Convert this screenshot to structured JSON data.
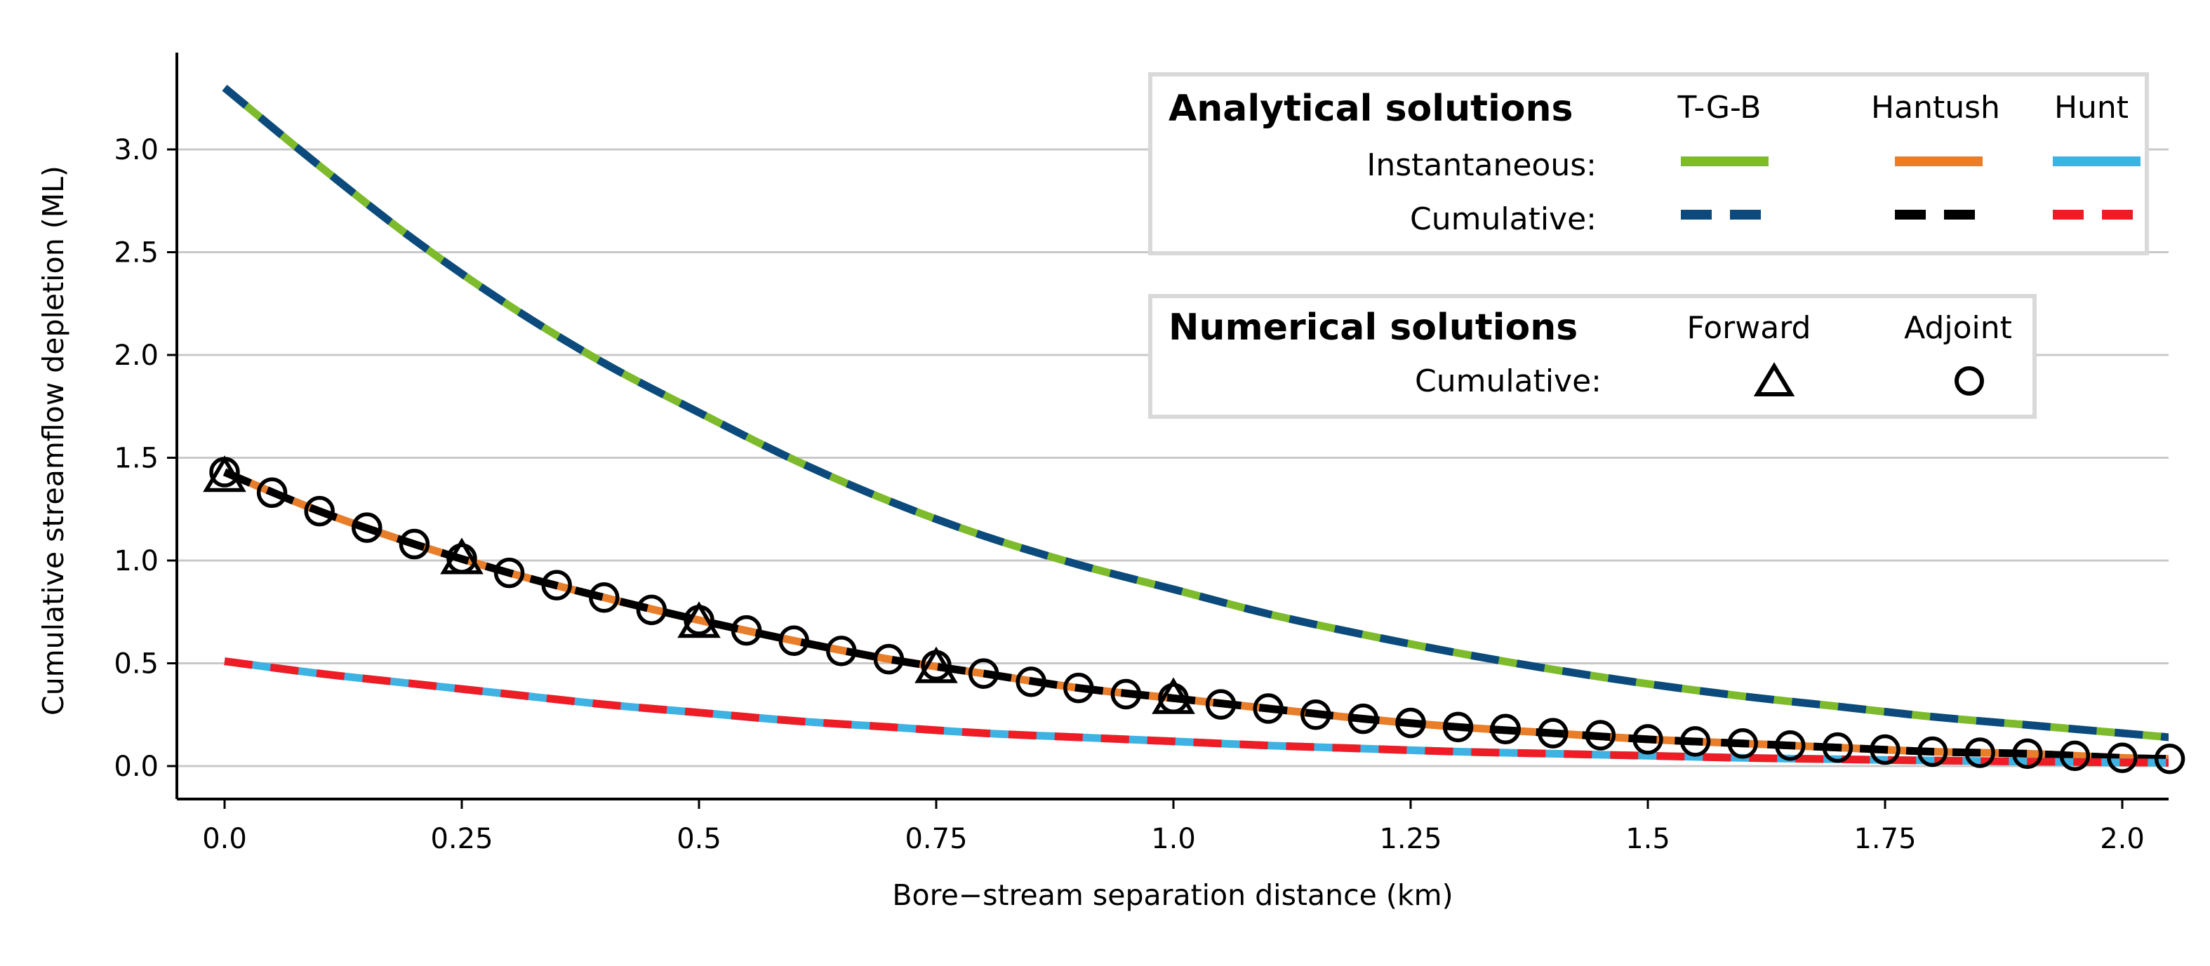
{
  "chart_data": {
    "type": "line",
    "xlabel": "Bore−stream separation distance (km)",
    "ylabel": "Cumulative streamflow depletion (ML)",
    "xlim": [
      -0.05,
      2.05
    ],
    "ylim": [
      -0.16,
      3.45
    ],
    "x_ticks": [
      0.0,
      0.25,
      0.5,
      0.75,
      1.0,
      1.25,
      1.5,
      1.75,
      2.0
    ],
    "x_tick_labels": [
      "0.0",
      "0.25",
      "0.5",
      "0.75",
      "1.0",
      "1.25",
      "1.5",
      "1.75",
      "2.0"
    ],
    "y_ticks": [
      0.0,
      0.5,
      1.0,
      1.5,
      2.0,
      2.5,
      3.0
    ],
    "y_tick_labels": [
      "0.0",
      "0.5",
      "1.0",
      "1.5",
      "2.0",
      "2.5",
      "3.0"
    ],
    "grid": "horizontal",
    "analytical_series": [
      {
        "name": "T-G-B",
        "kind": "Instantaneous",
        "color": "#7dbb2c",
        "style": "solid",
        "x": [
          0.0,
          0.1,
          0.2,
          0.3,
          0.4,
          0.5,
          0.6,
          0.7,
          0.8,
          0.9,
          1.0,
          1.1,
          1.2,
          1.3,
          1.4,
          1.5,
          1.6,
          1.7,
          1.8,
          1.9,
          2.0,
          2.05
        ],
        "y": [
          3.3,
          2.92,
          2.56,
          2.24,
          1.96,
          1.72,
          1.49,
          1.29,
          1.12,
          0.98,
          0.86,
          0.74,
          0.64,
          0.55,
          0.47,
          0.4,
          0.34,
          0.29,
          0.24,
          0.2,
          0.16,
          0.14
        ]
      },
      {
        "name": "T-G-B",
        "kind": "Cumulative",
        "color": "#0c4a7d",
        "style": "dashed",
        "x": [
          0.0,
          0.1,
          0.2,
          0.3,
          0.4,
          0.5,
          0.6,
          0.7,
          0.8,
          0.9,
          1.0,
          1.1,
          1.2,
          1.3,
          1.4,
          1.5,
          1.6,
          1.7,
          1.8,
          1.9,
          2.0,
          2.05
        ],
        "y": [
          3.3,
          2.92,
          2.56,
          2.24,
          1.96,
          1.72,
          1.49,
          1.29,
          1.12,
          0.98,
          0.86,
          0.74,
          0.64,
          0.55,
          0.47,
          0.4,
          0.34,
          0.29,
          0.24,
          0.2,
          0.16,
          0.14
        ]
      },
      {
        "name": "Hantush",
        "kind": "Instantaneous",
        "color": "#e87d2a",
        "style": "solid",
        "x": [
          0.0,
          0.1,
          0.2,
          0.3,
          0.4,
          0.5,
          0.6,
          0.7,
          0.8,
          0.9,
          1.0,
          1.1,
          1.2,
          1.3,
          1.4,
          1.5,
          1.6,
          1.7,
          1.8,
          1.9,
          2.0,
          2.05
        ],
        "y": [
          1.43,
          1.24,
          1.08,
          0.94,
          0.82,
          0.71,
          0.61,
          0.52,
          0.45,
          0.38,
          0.33,
          0.28,
          0.23,
          0.19,
          0.16,
          0.13,
          0.11,
          0.09,
          0.07,
          0.06,
          0.04,
          0.035
        ]
      },
      {
        "name": "Hantush",
        "kind": "Cumulative",
        "color": "#000000",
        "style": "dashed",
        "x": [
          0.0,
          0.1,
          0.2,
          0.3,
          0.4,
          0.5,
          0.6,
          0.7,
          0.8,
          0.9,
          1.0,
          1.1,
          1.2,
          1.3,
          1.4,
          1.5,
          1.6,
          1.7,
          1.8,
          1.9,
          2.0,
          2.05
        ],
        "y": [
          1.43,
          1.24,
          1.08,
          0.94,
          0.82,
          0.71,
          0.61,
          0.52,
          0.45,
          0.38,
          0.33,
          0.28,
          0.23,
          0.19,
          0.16,
          0.13,
          0.11,
          0.09,
          0.07,
          0.06,
          0.04,
          0.035
        ]
      },
      {
        "name": "Hunt",
        "kind": "Instantaneous",
        "color": "#3db2e3",
        "style": "solid",
        "x": [
          0.0,
          0.1,
          0.2,
          0.3,
          0.4,
          0.5,
          0.6,
          0.7,
          0.8,
          0.9,
          1.0,
          1.1,
          1.2,
          1.3,
          1.4,
          1.5,
          1.6,
          1.7,
          1.8,
          1.9,
          2.0,
          2.05
        ],
        "y": [
          0.51,
          0.45,
          0.4,
          0.35,
          0.3,
          0.26,
          0.22,
          0.19,
          0.16,
          0.14,
          0.12,
          0.1,
          0.085,
          0.07,
          0.06,
          0.05,
          0.04,
          0.033,
          0.027,
          0.022,
          0.018,
          0.016
        ]
      },
      {
        "name": "Hunt",
        "kind": "Cumulative",
        "color": "#ee1c24",
        "style": "dashed",
        "x": [
          0.0,
          0.1,
          0.2,
          0.3,
          0.4,
          0.5,
          0.6,
          0.7,
          0.8,
          0.9,
          1.0,
          1.1,
          1.2,
          1.3,
          1.4,
          1.5,
          1.6,
          1.7,
          1.8,
          1.9,
          2.0,
          2.05
        ],
        "y": [
          0.51,
          0.45,
          0.4,
          0.35,
          0.3,
          0.26,
          0.22,
          0.19,
          0.16,
          0.14,
          0.12,
          0.1,
          0.085,
          0.07,
          0.06,
          0.05,
          0.04,
          0.033,
          0.027,
          0.022,
          0.018,
          0.016
        ]
      }
    ],
    "numerical_series": [
      {
        "name": "Forward",
        "kind": "Cumulative",
        "marker": "triangle",
        "x": [
          0.0,
          0.25,
          0.5,
          0.75,
          1.0
        ],
        "y": [
          1.4,
          1.0,
          0.69,
          0.47,
          0.32
        ]
      },
      {
        "name": "Adjoint",
        "kind": "Cumulative",
        "marker": "circle",
        "x": [
          0.0,
          0.05,
          0.1,
          0.15,
          0.2,
          0.25,
          0.3,
          0.35,
          0.4,
          0.45,
          0.5,
          0.55,
          0.6,
          0.65,
          0.7,
          0.75,
          0.8,
          0.85,
          0.9,
          0.95,
          1.0,
          1.05,
          1.1,
          1.15,
          1.2,
          1.25,
          1.3,
          1.35,
          1.4,
          1.45,
          1.5,
          1.55,
          1.6,
          1.65,
          1.7,
          1.75,
          1.8,
          1.85,
          1.9,
          1.95,
          2.0,
          2.05
        ],
        "y": [
          1.43,
          1.33,
          1.24,
          1.16,
          1.08,
          1.01,
          0.94,
          0.88,
          0.82,
          0.76,
          0.71,
          0.66,
          0.61,
          0.56,
          0.52,
          0.49,
          0.45,
          0.41,
          0.38,
          0.35,
          0.33,
          0.3,
          0.28,
          0.25,
          0.23,
          0.21,
          0.19,
          0.18,
          0.16,
          0.15,
          0.13,
          0.12,
          0.11,
          0.1,
          0.09,
          0.08,
          0.07,
          0.065,
          0.06,
          0.05,
          0.04,
          0.035
        ]
      }
    ]
  },
  "legend_analytical": {
    "title": "Analytical solutions",
    "col1": "T-G-B",
    "col2": "Hantush",
    "col3": "Hunt",
    "row1": "Instantaneous:",
    "row2": "Cumulative:"
  },
  "legend_numerical": {
    "title": "Numerical solutions",
    "col1": "Forward",
    "col2": "Adjoint",
    "row1": "Cumulative:"
  }
}
